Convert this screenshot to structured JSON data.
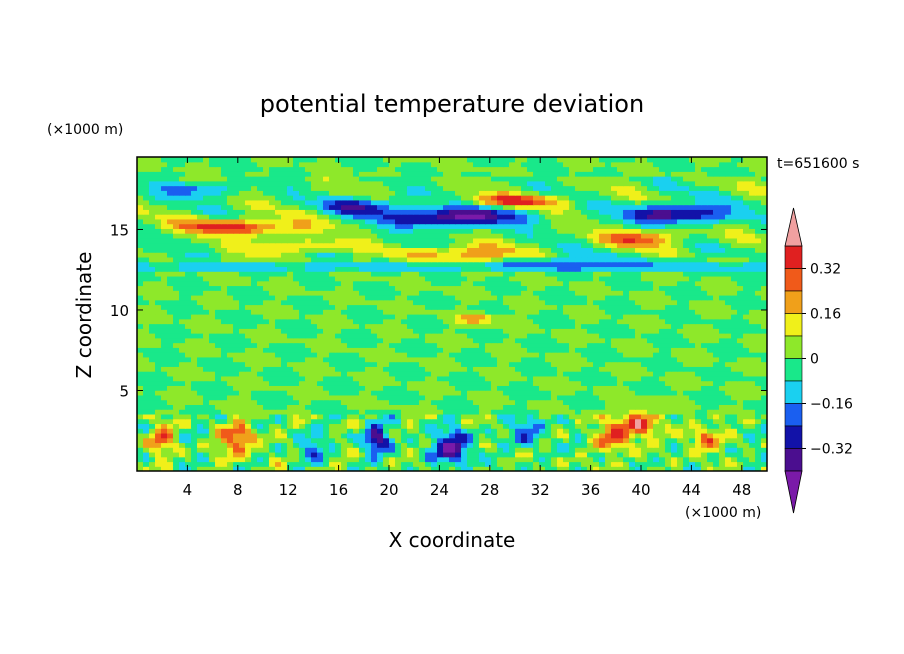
{
  "chart_data": {
    "type": "heatmap",
    "title": "potential temperature deviation",
    "xlabel": "X coordinate",
    "ylabel": "Z coordinate",
    "x_unit": "(×1000 m)",
    "y_unit": "(×1000 m)",
    "time_label": "t=651600 s",
    "xlim": [
      0,
      50
    ],
    "ylim": [
      0,
      19.5
    ],
    "x_ticks": [
      4,
      8,
      12,
      16,
      20,
      24,
      28,
      32,
      36,
      40,
      44,
      48
    ],
    "y_ticks": [
      5,
      10,
      15
    ],
    "colorbar": {
      "levels": [
        -0.4,
        -0.32,
        -0.24,
        -0.16,
        -0.08,
        0,
        0.08,
        0.16,
        0.24,
        0.32,
        0.4
      ],
      "tick_values": [
        0.32,
        0.16,
        0,
        -0.16,
        -0.32
      ],
      "tick_labels": [
        "0.32",
        "0.16",
        "0",
        "−0.16",
        "−0.32"
      ],
      "colors": [
        "#7a1aa8",
        "#4b0e8f",
        "#1212a8",
        "#1a5ff0",
        "#1ad0f0",
        "#19e88a",
        "#8ee82a",
        "#f0f01a",
        "#f0a01a",
        "#f05a1a",
        "#e02020",
        "#f0a0a0"
      ]
    },
    "features": [
      {
        "x": 25,
        "z": 15.8,
        "value": -0.45,
        "sx": 5,
        "sz": 0.6
      },
      {
        "x": 43,
        "z": 16.0,
        "value": -0.4,
        "sx": 4,
        "sz": 0.6
      },
      {
        "x": 8,
        "z": 15.2,
        "value": 0.35,
        "sx": 5,
        "sz": 0.5
      },
      {
        "x": 18,
        "z": 16.5,
        "value": -0.3,
        "sx": 3,
        "sz": 0.5
      },
      {
        "x": 30,
        "z": 16.8,
        "value": 0.3,
        "sx": 4,
        "sz": 0.4
      },
      {
        "x": 26,
        "z": 13.5,
        "value": 0.28,
        "sx": 4,
        "sz": 0.5
      },
      {
        "x": 40,
        "z": 14.5,
        "value": 0.3,
        "sx": 3,
        "sz": 0.5
      },
      {
        "x": 5,
        "z": 17.5,
        "value": -0.2,
        "sx": 3,
        "sz": 0.5
      },
      {
        "x": 35,
        "z": 13.0,
        "value": -0.15,
        "sx": 6,
        "sz": 0.4
      },
      {
        "x": 13,
        "z": 14.0,
        "value": 0.2,
        "sx": 4,
        "sz": 0.4
      },
      {
        "x": 27,
        "z": 9.5,
        "value": 0.25,
        "sx": 1.5,
        "sz": 0.3
      },
      {
        "x": 40,
        "z": 3.0,
        "value": 0.35,
        "sx": 1.2,
        "sz": 0.8
      },
      {
        "x": 25,
        "z": 1.5,
        "value": -0.4,
        "sx": 1.5,
        "sz": 1.0
      },
      {
        "x": 19,
        "z": 2.0,
        "value": -0.35,
        "sx": 1.0,
        "sz": 0.9
      },
      {
        "x": 8,
        "z": 2.0,
        "value": 0.3,
        "sx": 1.5,
        "sz": 1.0
      },
      {
        "x": 38,
        "z": 2.2,
        "value": 0.28,
        "sx": 1.5,
        "sz": 1.0
      },
      {
        "x": 2,
        "z": 2.0,
        "value": 0.25,
        "sx": 1.0,
        "sz": 1.0
      },
      {
        "x": 31,
        "z": 2.5,
        "value": -0.25,
        "sx": 1.2,
        "sz": 0.8
      },
      {
        "x": 45,
        "z": 2.0,
        "value": 0.25,
        "sx": 1.2,
        "sz": 0.8
      },
      {
        "x": 14,
        "z": 1.5,
        "value": -0.2,
        "sx": 1.0,
        "sz": 0.8
      }
    ]
  }
}
